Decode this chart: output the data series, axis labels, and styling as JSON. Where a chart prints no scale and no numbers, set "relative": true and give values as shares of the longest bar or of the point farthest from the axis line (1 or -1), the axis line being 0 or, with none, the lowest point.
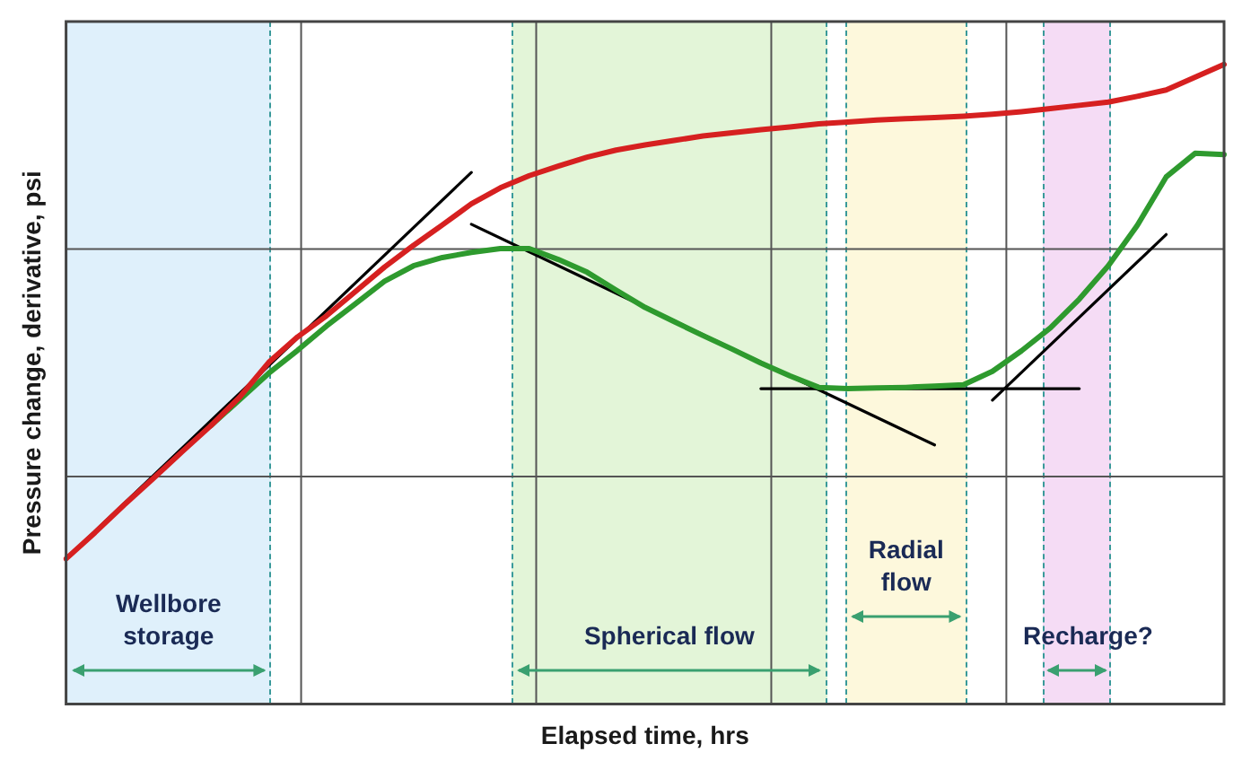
{
  "chart_data": {
    "type": "line",
    "relative": true,
    "xlabel": "Elapsed time, hrs",
    "ylabel": "Pressure change, derivative, psi",
    "categories": [
      null,
      null,
      null,
      null,
      null,
      null,
      null,
      null,
      null,
      null,
      null,
      null,
      null,
      null,
      null,
      null,
      null,
      null,
      null,
      null,
      null,
      null,
      null,
      null,
      null,
      null,
      null,
      null,
      null,
      null,
      null,
      null,
      null,
      null,
      null,
      null,
      null,
      null,
      null,
      null,
      null
    ],
    "grid": true,
    "legend": false,
    "marker": "none",
    "line_style": "solid",
    "series": [
      {
        "color": "#d62020",
        "values": [
          0.227,
          0.268,
          0.311,
          0.352,
          0.394,
          0.435,
          0.48,
          0.534,
          0.574,
          0.607,
          0.645,
          0.683,
          0.717,
          0.749,
          0.782,
          0.807,
          0.826,
          0.841,
          0.855,
          0.866,
          0.874,
          0.881,
          0.888,
          0.893,
          0.898,
          0.902,
          0.907,
          0.91,
          0.913,
          0.915,
          0.917,
          0.919,
          0.922,
          0.926,
          0.931,
          0.936,
          0.941,
          0.95,
          0.96,
          0.98,
          1.0
        ]
      },
      {
        "color": "#2e9a2e",
        "values": [
          null,
          null,
          null,
          null,
          null,
          0.435,
          0.476,
          0.517,
          0.553,
          0.591,
          0.626,
          0.661,
          0.685,
          0.698,
          0.706,
          0.712,
          0.712,
          0.695,
          0.675,
          0.647,
          0.62,
          0.598,
          0.576,
          0.555,
          0.533,
          0.513,
          0.495,
          0.493,
          0.494,
          0.495,
          0.497,
          0.499,
          0.52,
          0.552,
          0.588,
          0.633,
          0.685,
          0.748,
          0.824,
          0.861,
          0.859
        ]
      },
      {
        "type": "line",
        "color": "#000000",
        "values": [
          0.227,
          null,
          null,
          null,
          null,
          null,
          null,
          null,
          null,
          null,
          null,
          null,
          null,
          null,
          0.831,
          null,
          null,
          null,
          null,
          null,
          null,
          null,
          null,
          null,
          null,
          null,
          null,
          null,
          null,
          null,
          null,
          null,
          null,
          null,
          null,
          null,
          null,
          null,
          null,
          null,
          null
        ]
      },
      {
        "type": "line",
        "color": "#000000",
        "values": [
          null,
          null,
          null,
          null,
          null,
          null,
          null,
          null,
          null,
          null,
          null,
          null,
          null,
          null,
          0.75,
          null,
          null,
          null,
          null,
          null,
          null,
          null,
          null,
          null,
          null,
          null,
          null,
          null,
          null,
          null,
          0.405,
          null,
          null,
          null,
          null,
          null,
          null,
          null,
          null,
          null,
          null
        ]
      },
      {
        "type": "line",
        "color": "#000000",
        "values": [
          null,
          null,
          null,
          null,
          null,
          null,
          null,
          null,
          null,
          null,
          null,
          null,
          null,
          null,
          null,
          null,
          null,
          null,
          null,
          null,
          null,
          null,
          null,
          null,
          0.493,
          null,
          null,
          null,
          null,
          null,
          null,
          null,
          null,
          null,
          null,
          0.493,
          null,
          null,
          null,
          null,
          null
        ]
      },
      {
        "type": "line",
        "color": "#000000",
        "values": [
          null,
          null,
          null,
          null,
          null,
          null,
          null,
          null,
          null,
          null,
          null,
          null,
          null,
          null,
          null,
          null,
          null,
          null,
          null,
          null,
          null,
          null,
          null,
          null,
          null,
          null,
          null,
          null,
          null,
          null,
          null,
          null,
          0.475,
          null,
          null,
          null,
          null,
          null,
          0.734,
          null,
          null
        ]
      }
    ],
    "annotations": [
      "Wellbore storage",
      "Spherical flow",
      "Radial flow",
      "Recharge?"
    ]
  }
}
